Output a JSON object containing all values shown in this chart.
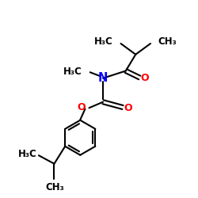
{
  "bg_color": "#ffffff",
  "bond_color": "#000000",
  "N_color": "#0000ff",
  "O_color": "#ff0000",
  "text_color": "#000000",
  "bond_width": 1.5,
  "figsize": [
    2.5,
    2.5
  ],
  "dpi": 100,
  "xlim": [
    0,
    10
  ],
  "ylim": [
    0,
    10
  ],
  "font_size": 8.5
}
